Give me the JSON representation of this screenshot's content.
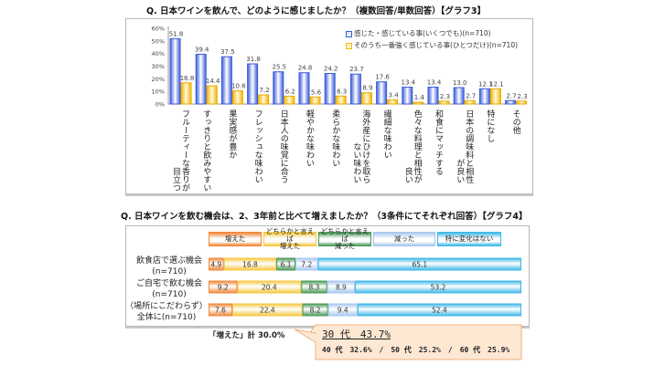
{
  "graph3": {
    "question": "Q. 日本ワインを飲んで、どのように感じましたか？（複数回答/単数回答）【グラフ3】",
    "legend": [
      {
        "label": "感じた・感じている事(いくつでも)(n=710)",
        "color": "#3b5bdb"
      },
      {
        "label": "そのうち一番強く感じている事(ひとつだけ)(n=710)",
        "color": "#f2b705"
      }
    ],
    "category_labels": [
      {
        "line1": "フルーティーな香りが",
        "line2": "目立つ"
      },
      {
        "line1": "すっきりと飲みやすい",
        "line2": ""
      },
      {
        "line1": "果実感が豊か",
        "line2": ""
      },
      {
        "line1": "フレッシュな味わい",
        "line2": ""
      },
      {
        "line1": "日本人の味覚に合う",
        "line2": ""
      },
      {
        "line1": "軽やかな味わい",
        "line2": ""
      },
      {
        "line1": "柔らかな味わい",
        "line2": ""
      },
      {
        "line1": "海外産にひけを取ら",
        "line2": "ない味わい"
      },
      {
        "line1": "繊細な味わい",
        "line2": ""
      },
      {
        "line1": "色々な料理と相性が",
        "line2": "良い"
      },
      {
        "line1": "和食にマッチする",
        "line2": ""
      },
      {
        "line1": "日本の調味料と相性",
        "line2": "が良い"
      },
      {
        "line1": "特になし",
        "line2": ""
      },
      {
        "line1": "その他",
        "line2": ""
      }
    ]
  },
  "chart_data": [
    {
      "type": "bar",
      "title": "Q. 日本ワインを飲んで、どのように感じましたか？（複数回答/単数回答）【グラフ3】",
      "categories": [
        "フルーティーな香りが目立つ",
        "すっきりと飲みやすい",
        "果実感が豊か",
        "フレッシュな味わい",
        "日本人の味覚に合う",
        "軽やかな味わい",
        "柔らかな味わい",
        "海外産にひけを取らない味わい",
        "繊細な味わい",
        "色々な料理と相性が良い",
        "和食にマッチする",
        "日本の調味料と相性が良い",
        "特になし",
        "その他"
      ],
      "series": [
        {
          "name": "感じた・感じている事(いくつでも)(n=710)",
          "values": [
            51.8,
            39.4,
            37.5,
            31.8,
            25.5,
            24.8,
            24.2,
            23.7,
            17.6,
            13.4,
            13.4,
            13.0,
            12.1,
            2.7
          ],
          "labels": [
            "51.8",
            "39.4",
            "37.5",
            "31.8",
            "25.5",
            "24.8",
            "24.2",
            "23.7",
            "17.6",
            "13.4",
            "13.4",
            "13.0",
            "12.1",
            "2.7"
          ]
        },
        {
          "name": "そのうち一番強く感じている事(ひとつだけ)(n=710)",
          "values": [
            16.8,
            14.4,
            10.6,
            7.2,
            6.2,
            5.6,
            6.3,
            8.9,
            3.4,
            1.4,
            2.3,
            2.7,
            12.1,
            2.3
          ],
          "labels": [
            "16.8",
            "14.4",
            "10.6",
            "7.2",
            "6.2",
            "5.6",
            "6.3",
            "8.9",
            "3.4",
            "1.4",
            "2.3",
            "2.7",
            "12.1",
            "2.3"
          ]
        }
      ],
      "yticks": [
        "0%",
        "10%",
        "20%",
        "30%",
        "40%",
        "50%",
        "60%"
      ],
      "ylim": [
        0,
        60
      ],
      "xlabel": "",
      "ylabel": "",
      "legend_position": "top-right",
      "grid": false
    },
    {
      "type": "bar",
      "stacked": true,
      "orientation": "horizontal",
      "title": "Q. 日本ワインを飲む機会は、2、3年前と比べて増えましたか？（3条件にてそれぞれ回答）【グラフ4】",
      "categories": [
        "飲食店で選ぶ機会(n=710)",
        "ご自宅で飲む機会(n=710)",
        "（場所にこだわらず）全体に(n=710)"
      ],
      "series": [
        {
          "name": "増えた",
          "color": "#f0883a",
          "values": [
            4.9,
            9.2,
            7.6
          ],
          "labels": [
            "4.9",
            "9.2",
            "7.6"
          ]
        },
        {
          "name": "どちらかと言えば増えた",
          "color": "#f5c842",
          "values": [
            16.8,
            20.4,
            22.4
          ],
          "labels": [
            "16.8",
            "20.4",
            "22.4"
          ]
        },
        {
          "name": "どちらかと言えば減った",
          "color": "#4a9a5a",
          "values": [
            6.1,
            8.3,
            8.2
          ],
          "labels": [
            "6.1",
            "8.3",
            "8.2"
          ]
        },
        {
          "name": "減った",
          "color": "#a9c8f0",
          "values": [
            7.2,
            8.9,
            9.4
          ],
          "labels": [
            "7.2",
            "8.9",
            "9.4"
          ]
        },
        {
          "name": "特に変化はない",
          "color": "#3fb8e8",
          "values": [
            65.1,
            53.2,
            52.4
          ],
          "labels": [
            "65.1",
            "53.2",
            "52.4"
          ]
        }
      ],
      "xlim": [
        0,
        100
      ],
      "legend_position": "top"
    }
  ],
  "graph4": {
    "question": "Q. 日本ワインを飲む機会は、2、3年前と比べて増えましたか？（3条件にてそれぞれ回答）【グラフ4】",
    "headers": [
      {
        "line1": "増えた",
        "line2": ""
      },
      {
        "line1": "どちらかと言えば",
        "line2": "増えた"
      },
      {
        "line1": "どちらかと言えば",
        "line2": "減った"
      },
      {
        "line1": "減った",
        "line2": ""
      },
      {
        "line1": "特に変化はない",
        "line2": ""
      }
    ],
    "rows": [
      {
        "line1": "飲食店で選ぶ機会",
        "line2": "(n=710)"
      },
      {
        "line1": "ご自宅で飲む機会",
        "line2": "(n=710)"
      },
      {
        "line1": "（場所にこだわらず）",
        "line2": "全体に(n=710)"
      }
    ],
    "note": "「増えた」計 30.0%",
    "callout": {
      "main": "30 代　43.7%",
      "sub": "40 代　32.6%　/　50 代　25.2%　/　60 代　25.9%"
    }
  }
}
